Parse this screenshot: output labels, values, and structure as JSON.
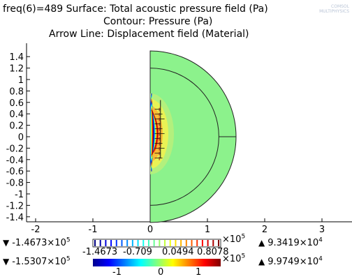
{
  "header": {
    "line1": "freq(6)=489   Surface: Total acoustic pressure field (Pa)",
    "line2": "Contour: Pressure (Pa)",
    "line3": "Arrow Line: Displacement field (Material)",
    "logo_line1": "COMSOL",
    "logo_line2": "MULTIPHYSICS"
  },
  "chart_data": {
    "type": "heatmap",
    "title": "",
    "x_ticks": [
      "-2",
      "-1",
      "0",
      "1",
      "2",
      "3"
    ],
    "y_ticks": [
      "1.4",
      "1.2",
      "1",
      "0.8",
      "0.6",
      "0.4",
      "0.2",
      "0",
      "-0.2",
      "-0.4",
      "-0.6",
      "-0.8",
      "-1",
      "-1.2",
      "-1.4"
    ],
    "xlim": [
      -2,
      3
    ],
    "ylim": [
      -1.5,
      1.5
    ],
    "geometry": {
      "outer_radius": 1.5,
      "inner_radius": 1.2
    },
    "surface_color": "#8cf28c",
    "contour_legend": {
      "min_symbol": "▼",
      "min_value": "-1.4673×10",
      "min_exp": "5",
      "max_symbol": "▲",
      "max_value": "9.3419×10",
      "max_exp": "4",
      "scale_exp_label": "×10",
      "scale_exp": "5",
      "tick_labels": [
        "-1.4673",
        "-0.709",
        "0.0494",
        "0.8078"
      ]
    },
    "surface_legend": {
      "min_symbol": "▼",
      "min_value": "-1.5307×10",
      "min_exp": "5",
      "max_symbol": "▲",
      "max_value": "9.9749×10",
      "max_exp": "4",
      "scale_exp_label": "×10",
      "scale_exp": "5",
      "tick_labels": [
        "-1",
        "0",
        "1"
      ]
    }
  }
}
